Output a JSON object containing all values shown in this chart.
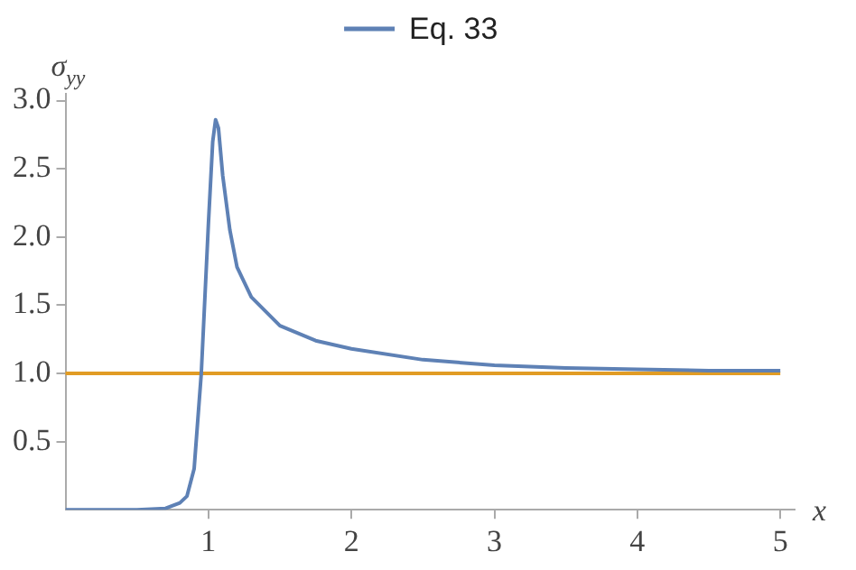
{
  "chart_data": {
    "type": "line",
    "xlabel": "x",
    "ylabel": "σ$_{yy}$",
    "xlim": [
      0,
      5.1
    ],
    "ylim": [
      0,
      3.05
    ],
    "xticks": [
      1,
      2,
      3,
      4,
      5
    ],
    "yticks": [
      0.5,
      {
        "value": 1,
        "label": "1.0"
      },
      1.5,
      {
        "value": 2,
        "label": "2.0"
      },
      2.5,
      {
        "value": 3,
        "label": "3.0"
      }
    ],
    "grid": false,
    "legend": "top",
    "marker": "none",
    "line_style": "solid",
    "series": [
      {
        "name": "Eq. 33",
        "color": "#5e81b5",
        "x": [
          0,
          0.5,
          0.7,
          0.8,
          0.85,
          0.9,
          0.95,
          1.0,
          1.03,
          1.05,
          1.07,
          1.1,
          1.15,
          1.2,
          1.3,
          1.5,
          1.75,
          2,
          2.5,
          3,
          3.5,
          4,
          4.5,
          5
        ],
        "values": [
          0,
          0,
          0.01,
          0.05,
          0.1,
          0.3,
          1.0,
          2.1,
          2.7,
          2.86,
          2.8,
          2.45,
          2.05,
          1.78,
          1.56,
          1.35,
          1.24,
          1.18,
          1.1,
          1.06,
          1.04,
          1.03,
          1.02,
          1.02
        ]
      }
    ],
    "ref_lines": [
      {
        "axis": "y",
        "value": 1,
        "label": null,
        "color": "#e19c24"
      }
    ]
  }
}
